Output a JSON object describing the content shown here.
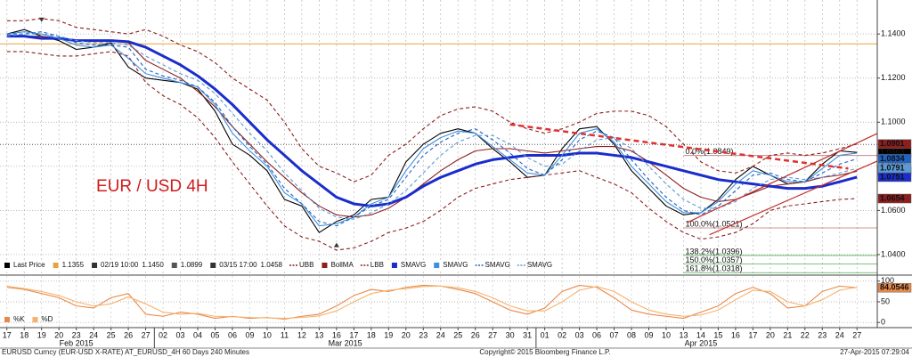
{
  "chart_data": [
    {
      "type": "line",
      "title": "EUR / USD 4H",
      "categories": [
        "17",
        "18",
        "19",
        "20",
        "23",
        "24",
        "25",
        "26",
        "27",
        "02",
        "03",
        "04",
        "05",
        "06",
        "09",
        "10",
        "11",
        "12",
        "13",
        "16",
        "17",
        "18",
        "19",
        "20",
        "23",
        "24",
        "25",
        "26",
        "27",
        "30",
        "31",
        "01",
        "02",
        "03",
        "06",
        "07",
        "08",
        "09",
        "10",
        "13",
        "14",
        "15",
        "16",
        "17",
        "20",
        "21",
        "22",
        "23",
        "24",
        "27"
      ],
      "months": [
        "Feb 2015",
        "Mar 2015",
        "Apr 2015"
      ],
      "ylim": [
        1.0311,
        1.1554
      ],
      "yticks": [
        {
          "value": 1.04,
          "label": "1.0400"
        },
        {
          "value": 1.06,
          "label": "1.0600"
        },
        {
          "value": 1.08,
          "label": "1.0800"
        },
        {
          "value": 1.1,
          "label": "1.1000"
        },
        {
          "value": 1.12,
          "label": "1.1200"
        },
        {
          "value": 1.14,
          "label": "1.1400"
        }
      ],
      "grid": true,
      "series": [
        {
          "name": "Last Price",
          "color": "#000000",
          "values": [
            1.14,
            1.142,
            1.139,
            1.137,
            1.133,
            1.134,
            1.136,
            1.125,
            1.12,
            1.119,
            1.118,
            1.115,
            1.105,
            1.09,
            1.085,
            1.078,
            1.065,
            1.062,
            1.05,
            1.055,
            1.058,
            1.065,
            1.066,
            1.082,
            1.09,
            1.095,
            1.097,
            1.095,
            1.088,
            1.082,
            1.075,
            1.076,
            1.088,
            1.097,
            1.098,
            1.09,
            1.078,
            1.07,
            1.062,
            1.058,
            1.059,
            1.065,
            1.074,
            1.08,
            1.076,
            1.072,
            1.073,
            1.081,
            1.087,
            1.0863
          ]
        },
        {
          "name": "UBB",
          "color": "#8b1e1e",
          "dashed": true,
          "values": [
            1.146,
            1.146,
            1.147,
            1.146,
            1.143,
            1.142,
            1.141,
            1.14,
            1.142,
            1.139,
            1.135,
            1.132,
            1.127,
            1.12,
            1.115,
            1.11,
            1.1,
            1.088,
            1.08,
            1.077,
            1.073,
            1.076,
            1.085,
            1.09,
            1.097,
            1.103,
            1.106,
            1.107,
            1.105,
            1.1,
            1.097,
            1.095,
            1.097,
            1.1,
            1.104,
            1.105,
            1.105,
            1.103,
            1.098,
            1.09,
            1.082,
            1.078,
            1.077,
            1.08,
            1.085,
            1.086,
            1.085,
            1.086,
            1.088,
            1.0901
          ]
        },
        {
          "name": "BollMA",
          "color": "#8b1e1e",
          "values": [
            1.139,
            1.139,
            1.139,
            1.138,
            1.137,
            1.137,
            1.137,
            1.136,
            1.128,
            1.124,
            1.12,
            1.114,
            1.107,
            1.098,
            1.09,
            1.082,
            1.075,
            1.068,
            1.062,
            1.058,
            1.057,
            1.058,
            1.061,
            1.066,
            1.072,
            1.078,
            1.083,
            1.087,
            1.088,
            1.088,
            1.087,
            1.086,
            1.087,
            1.088,
            1.089,
            1.089,
            1.087,
            1.082,
            1.076,
            1.07,
            1.066,
            1.064,
            1.065,
            1.068,
            1.071,
            1.072,
            1.073,
            1.075,
            1.076,
            1.0778
          ]
        },
        {
          "name": "LBB",
          "color": "#8b1e1e",
          "dashed": true,
          "values": [
            1.132,
            1.132,
            1.131,
            1.13,
            1.13,
            1.131,
            1.132,
            1.13,
            1.118,
            1.112,
            1.108,
            1.102,
            1.093,
            1.082,
            1.072,
            1.062,
            1.053,
            1.048,
            1.046,
            1.042,
            1.043,
            1.046,
            1.05,
            1.052,
            1.055,
            1.06,
            1.066,
            1.07,
            1.072,
            1.074,
            1.075,
            1.076,
            1.077,
            1.078,
            1.075,
            1.072,
            1.068,
            1.061,
            1.055,
            1.05,
            1.047,
            1.048,
            1.05,
            1.054,
            1.06,
            1.062,
            1.063,
            1.064,
            1.065,
            1.0654
          ]
        },
        {
          "name": "SMAVG",
          "color": "#1a2ccc",
          "thick": true,
          "values": [
            1.139,
            1.139,
            1.138,
            1.138,
            1.137,
            1.137,
            1.137,
            1.1365,
            1.134,
            1.13,
            1.126,
            1.121,
            1.115,
            1.108,
            1.1,
            1.092,
            1.085,
            1.078,
            1.072,
            1.066,
            1.063,
            1.062,
            1.063,
            1.066,
            1.071,
            1.075,
            1.078,
            1.081,
            1.083,
            1.084,
            1.085,
            1.085,
            1.085,
            1.086,
            1.086,
            1.085,
            1.084,
            1.082,
            1.08,
            1.078,
            1.076,
            1.074,
            1.073,
            1.072,
            1.071,
            1.07,
            1.07,
            1.071,
            1.073,
            1.0751
          ]
        },
        {
          "name": "SMAVG",
          "color": "#3f8fe0",
          "label_last": false,
          "values": [
            1.14,
            1.141,
            1.14,
            1.138,
            1.135,
            1.134,
            1.135,
            1.129,
            1.122,
            1.12,
            1.118,
            1.116,
            1.108,
            1.095,
            1.087,
            1.08,
            1.068,
            1.063,
            1.053,
            1.054,
            1.057,
            1.063,
            1.066,
            1.078,
            1.088,
            1.093,
            1.096,
            1.095,
            1.089,
            1.083,
            1.077,
            1.076,
            1.085,
            1.095,
            1.097,
            1.091,
            1.08,
            1.072,
            1.064,
            1.059,
            1.059,
            1.064,
            1.072,
            1.078,
            1.076,
            1.073,
            1.073,
            1.079,
            1.085,
            1.086
          ]
        },
        {
          "name": "SMAVG",
          "color": "#1f62c4",
          "dashed": true,
          "values": [
            1.14,
            1.14,
            1.141,
            1.139,
            1.136,
            1.135,
            1.135,
            1.134,
            1.124,
            1.121,
            1.119,
            1.116,
            1.109,
            1.098,
            1.089,
            1.081,
            1.07,
            1.063,
            1.055,
            1.053,
            1.057,
            1.062,
            1.065,
            1.075,
            1.085,
            1.091,
            1.095,
            1.097,
            1.092,
            1.086,
            1.079,
            1.076,
            1.083,
            1.092,
            1.096,
            1.093,
            1.083,
            1.074,
            1.066,
            1.06,
            1.058,
            1.062,
            1.069,
            1.076,
            1.077,
            1.074,
            1.073,
            1.077,
            1.081,
            1.0834
          ]
        },
        {
          "name": "SMAVG",
          "color": "#5b9bd5",
          "dashed": true,
          "values": [
            1.139,
            1.14,
            1.14,
            1.139,
            1.137,
            1.136,
            1.136,
            1.135,
            1.13,
            1.126,
            1.122,
            1.119,
            1.113,
            1.104,
            1.095,
            1.087,
            1.077,
            1.069,
            1.061,
            1.057,
            1.056,
            1.059,
            1.063,
            1.069,
            1.077,
            1.085,
            1.091,
            1.094,
            1.094,
            1.09,
            1.084,
            1.08,
            1.081,
            1.087,
            1.092,
            1.093,
            1.088,
            1.08,
            1.072,
            1.065,
            1.061,
            1.061,
            1.064,
            1.07,
            1.074,
            1.075,
            1.074,
            1.075,
            1.077,
            1.0791
          ]
        }
      ],
      "annotations": [
        {
          "value": 1.1355,
          "color": "#e8a33d",
          "line": "solid"
        },
        {
          "date": "02/19 10:00",
          "value": 1.145,
          "value_label": "1.1450",
          "category": 2
        },
        {
          "value": 1.0899,
          "color": "#555555",
          "line": "dotted"
        },
        {
          "date": "03/15 17:00",
          "value": 1.0458,
          "value_label": "1.0458",
          "category": 19
        }
      ],
      "fib": {
        "x0": 39,
        "levels": [
          {
            "label": "0.0%(1.0849)",
            "value": 1.0849,
            "color": "#b05050"
          },
          {
            "label": "100.0%(1.0521)",
            "value": 1.0521,
            "color": "#b05050"
          },
          {
            "label": "138.2%(1.0396)",
            "value": 1.0396,
            "color": "#2a9a2a"
          },
          {
            "label": "150.0%(1.0357)",
            "value": 1.0357,
            "color": "#2a9a2a"
          },
          {
            "label": "161.8%(1.0318)",
            "value": 1.0318,
            "color": "#2a9a2a"
          }
        ]
      },
      "trendlines": [
        {
          "points": [
            [
              29,
              1.099
            ],
            [
              48.5,
              1.079
            ]
          ],
          "color": "#e03030",
          "dashed": true,
          "thick": true
        },
        {
          "points": [
            [
              39.2,
              1.0545
            ],
            [
              50.2,
              1.095
            ]
          ],
          "color": "#c0302a"
        },
        {
          "points": [
            [
              40.5,
              1.049
            ],
            [
              50.2,
              1.0825
            ]
          ],
          "color": "#c0302a"
        }
      ]
    },
    {
      "type": "line",
      "ylim": [
        -12.5,
        112.5
      ],
      "yticks": [
        0,
        50,
        100
      ],
      "series": [
        {
          "name": "%K",
          "color": "#e8894a",
          "values": [
            85,
            80,
            70,
            60,
            40,
            35,
            60,
            70,
            20,
            15,
            25,
            20,
            10,
            15,
            10,
            12,
            8,
            15,
            20,
            40,
            65,
            80,
            75,
            85,
            90,
            88,
            80,
            70,
            50,
            30,
            20,
            35,
            75,
            90,
            85,
            60,
            30,
            20,
            15,
            10,
            25,
            40,
            70,
            85,
            70,
            35,
            40,
            75,
            88,
            84.0546
          ]
        },
        {
          "name": "%D",
          "color": "#f6b26b",
          "label_last": false,
          "values": [
            88,
            82,
            75,
            65,
            50,
            40,
            45,
            62,
            45,
            25,
            20,
            22,
            15,
            14,
            12,
            11,
            10,
            12,
            16,
            28,
            50,
            70,
            78,
            82,
            87,
            88,
            84,
            75,
            60,
            40,
            28,
            28,
            50,
            78,
            87,
            75,
            50,
            30,
            20,
            15,
            18,
            30,
            55,
            78,
            75,
            50,
            40,
            55,
            78,
            85
          ]
        }
      ]
    }
  ],
  "footer": {
    "left": "EURUSD Curncy (EUR-USD X-RATE) AT_EURUSD_4H 60 Days 240 Minutes",
    "center": "Copyright© 2015 Bloomberg Finance L.P.",
    "right": "27-Apr-2015 07:29:04"
  }
}
